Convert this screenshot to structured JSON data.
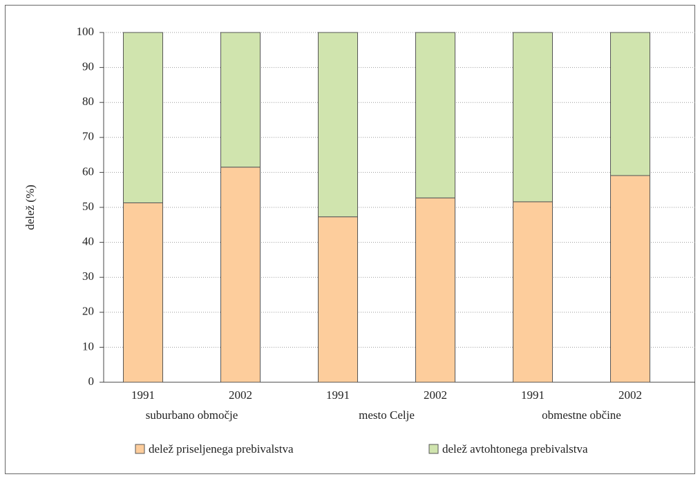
{
  "chart_data": {
    "type": "stacked_bar",
    "ylabel": "delež (%)",
    "categories": [
      "1991",
      "2002",
      "1991",
      "2002",
      "1991",
      "2002"
    ],
    "groups": [
      "suburbano območje",
      "mesto Celje",
      "obmestne občine"
    ],
    "series": [
      {
        "name": "delež priseljenega prebivalstva",
        "color": "#fdcd9c",
        "values": [
          51.3,
          61.5,
          47.3,
          52.7,
          51.6,
          59.1
        ]
      },
      {
        "name": "delež avtohtonega prebivalstva",
        "color": "#d0e4ae",
        "values": [
          48.7,
          38.5,
          52.7,
          47.3,
          48.4,
          40.9
        ]
      }
    ],
    "ylim": [
      0,
      100
    ],
    "yticks": [
      0,
      10,
      20,
      30,
      40,
      50,
      60,
      70,
      80,
      90,
      100
    ],
    "grid": true
  }
}
